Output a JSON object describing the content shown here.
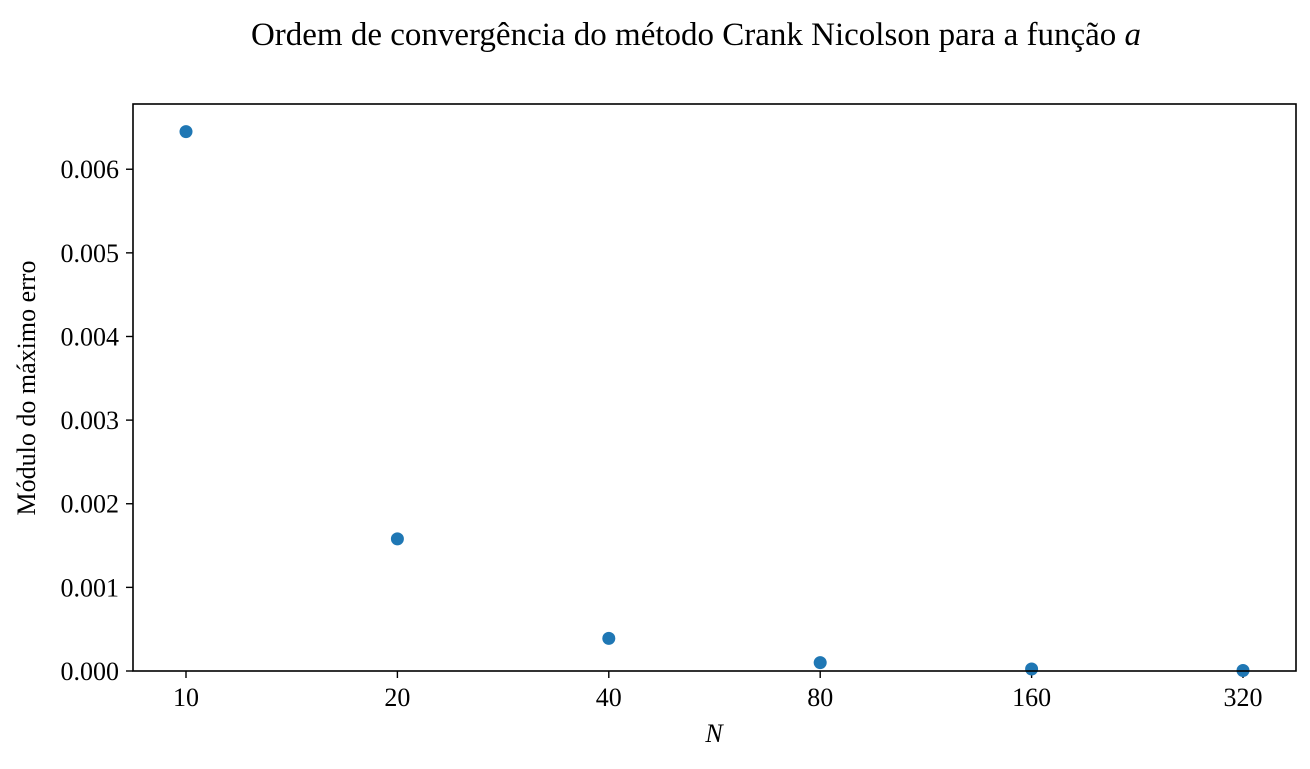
{
  "chart_data": {
    "type": "scatter",
    "title": "Ordem de convergência do método Crank Nicolson para a função",
    "title_math": "a",
    "xlabel": "N",
    "ylabel": "Módulo do máximo erro",
    "x_scale": "categorical",
    "categories": [
      "10",
      "20",
      "40",
      "80",
      "160",
      "320"
    ],
    "series": [
      {
        "values": [
          0.00645,
          0.00158,
          0.00039,
          0.0001,
          2.4e-05,
          6e-06
        ],
        "color": "#1f77b4"
      }
    ],
    "ylim": [
      0,
      0.00678
    ],
    "yticks": [
      0.0,
      0.001,
      0.002,
      0.003,
      0.004,
      0.005,
      0.006
    ],
    "ytick_labels": [
      "0.000",
      "0.001",
      "0.002",
      "0.003",
      "0.004",
      "0.005",
      "0.006"
    ],
    "grid": false,
    "legend": "none"
  }
}
